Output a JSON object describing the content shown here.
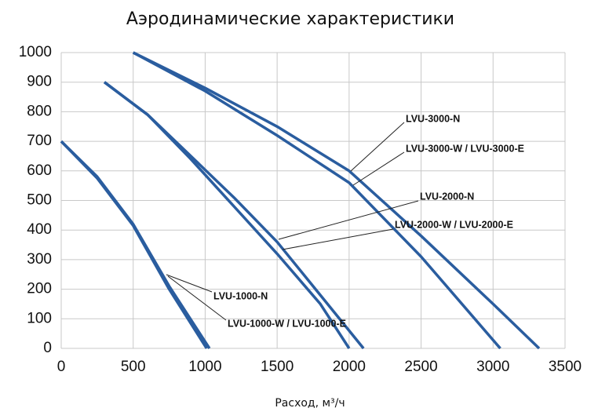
{
  "chart_data": {
    "type": "line",
    "title": "Аэродинамические характеристики",
    "x_label": "Расход, м³/ч",
    "xlim": [
      0,
      3500
    ],
    "xticks": [
      0,
      500,
      1000,
      1500,
      2000,
      2500,
      3000,
      3500
    ],
    "ylim": [
      0,
      1000
    ],
    "yticks": [
      0,
      100,
      200,
      300,
      400,
      500,
      600,
      700,
      800,
      900,
      1000
    ],
    "grid": true,
    "series": [
      {
        "name": "LVU-1000-N",
        "color": "#2a5d9f",
        "x": [
          0,
          250,
          500,
          750,
          1030
        ],
        "values": [
          700,
          580,
          420,
          210,
          0
        ]
      },
      {
        "name": "LVU-1000-W / LVU-1000-E",
        "color": "#2a5d9f",
        "x": [
          0,
          250,
          500,
          750,
          1010
        ],
        "values": [
          700,
          575,
          415,
          200,
          0
        ]
      },
      {
        "name": "LVU-2000-N",
        "color": "#2a5d9f",
        "x": [
          300,
          600,
          900,
          1200,
          1500,
          1800,
          2100
        ],
        "values": [
          900,
          790,
          650,
          510,
          360,
          180,
          0
        ]
      },
      {
        "name": "LVU-2000-W / LVU-2000-E",
        "color": "#2a5d9f",
        "x": [
          300,
          600,
          900,
          1200,
          1500,
          1800,
          2000
        ],
        "values": [
          900,
          790,
          640,
          480,
          320,
          150,
          0
        ]
      },
      {
        "name": "LVU-3000-N",
        "color": "#2a5d9f",
        "x": [
          500,
          1000,
          1500,
          2000,
          2500,
          3000,
          3320
        ],
        "values": [
          1000,
          880,
          750,
          600,
          380,
          150,
          0
        ]
      },
      {
        "name": "LVU-3000-W / LVU-3000-E",
        "color": "#2a5d9f",
        "x": [
          500,
          1000,
          1500,
          2000,
          2500,
          3050
        ],
        "values": [
          1000,
          870,
          720,
          560,
          310,
          0
        ]
      }
    ]
  }
}
